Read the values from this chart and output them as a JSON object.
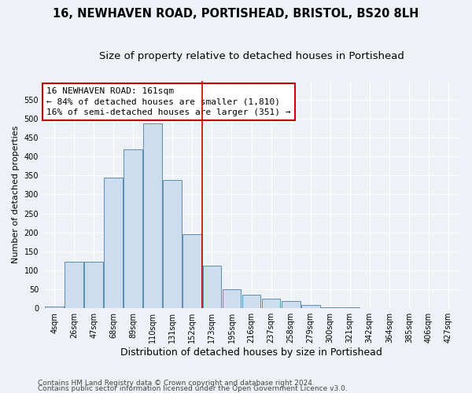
{
  "title": "16, NEWHAVEN ROAD, PORTISHEAD, BRISTOL, BS20 8LH",
  "subtitle": "Size of property relative to detached houses in Portishead",
  "xlabel": "Distribution of detached houses by size in Portishead",
  "ylabel": "Number of detached properties",
  "categories": [
    "4sqm",
    "26sqm",
    "47sqm",
    "68sqm",
    "89sqm",
    "110sqm",
    "131sqm",
    "152sqm",
    "173sqm",
    "195sqm",
    "216sqm",
    "237sqm",
    "258sqm",
    "279sqm",
    "300sqm",
    "321sqm",
    "342sqm",
    "364sqm",
    "385sqm",
    "406sqm",
    "427sqm"
  ],
  "bar_heights": [
    5,
    122,
    122,
    345,
    420,
    487,
    338,
    195,
    112,
    50,
    35,
    25,
    19,
    8,
    3,
    2,
    1,
    0,
    0,
    0,
    1
  ],
  "bar_color": "#ccdded",
  "bar_edge_color": "#5b8db0",
  "vline_x": 7.5,
  "vline_color": "#cc0000",
  "annotation_text": "16 NEWHAVEN ROAD: 161sqm\n← 84% of detached houses are smaller (1,810)\n16% of semi-detached houses are larger (351) →",
  "annotation_box_color": "#ffffff",
  "annotation_box_edge": "#cc0000",
  "ylim": [
    0,
    600
  ],
  "yticks": [
    0,
    50,
    100,
    150,
    200,
    250,
    300,
    350,
    400,
    450,
    500,
    550
  ],
  "footer1": "Contains HM Land Registry data © Crown copyright and database right 2024.",
  "footer2": "Contains public sector information licensed under the Open Government Licence v3.0.",
  "bg_color": "#eef2f7",
  "grid_color": "#ffffff",
  "title_fontsize": 10.5,
  "subtitle_fontsize": 9.5,
  "xlabel_fontsize": 9,
  "ylabel_fontsize": 8,
  "tick_fontsize": 7,
  "annotation_fontsize": 8,
  "footer_fontsize": 6.5
}
